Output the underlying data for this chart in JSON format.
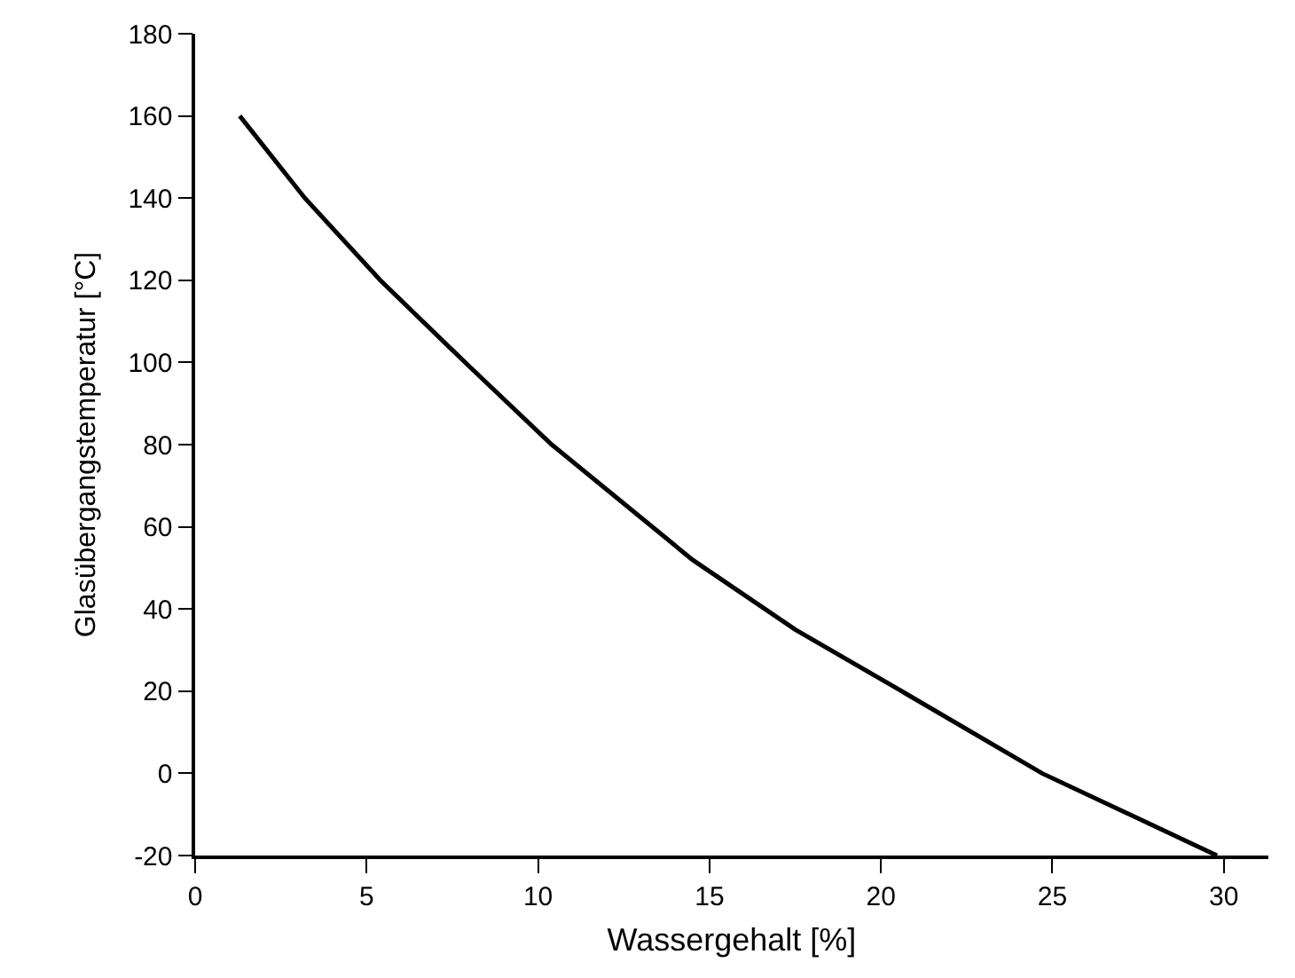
{
  "chart_data": {
    "type": "line",
    "xlabel": "Wassergehalt [%]",
    "ylabel": "Glasübergangstemperatur [°C]",
    "x": [
      1.3,
      3.2,
      5.4,
      8,
      10.4,
      12.6,
      14.5,
      17.5,
      20.4,
      24.7,
      29.8
    ],
    "series": [
      {
        "color": "#000000",
        "values": [
          160,
          140,
          120,
          99,
          80,
          65,
          52,
          35,
          21,
          0,
          -20
        ]
      }
    ],
    "xlim": [
      0,
      31.3
    ],
    "xticks": [
      0,
      5,
      10,
      15,
      20,
      25,
      30
    ],
    "ylim": [
      -20,
      180
    ],
    "yticks": [
      -20,
      0,
      20,
      40,
      60,
      80,
      100,
      120,
      140,
      160,
      180
    ],
    "marker": "none",
    "line_style": "solid"
  }
}
